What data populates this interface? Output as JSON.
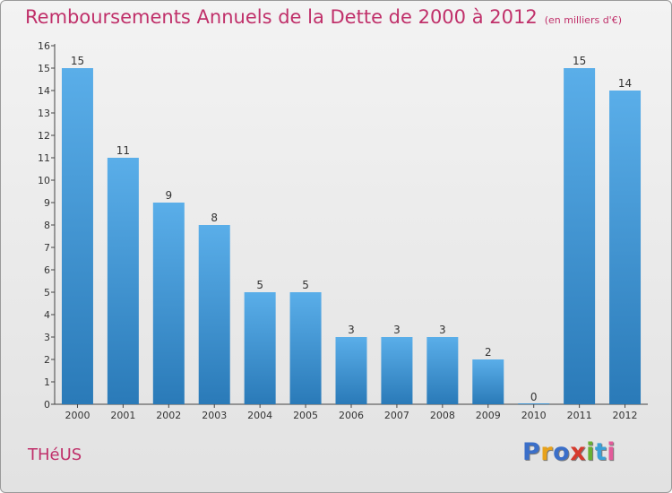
{
  "header": {
    "title": "Remboursements Annuels de la Dette de 2000 à 2012",
    "unit": "(en milliers d'€)"
  },
  "footer": {
    "commune": "THéUS",
    "logo_letters": [
      "P",
      "r",
      "o",
      "x",
      "i",
      "t",
      "i"
    ],
    "logo_colors": [
      "#3b6fc9",
      "#e8a21b",
      "#3b6fc9",
      "#d63b2e",
      "#67b133",
      "#3aa0d8",
      "#e35a9a"
    ]
  },
  "chart_data": {
    "type": "bar",
    "title": "Remboursements Annuels de la Dette de 2000 à 2012",
    "xlabel": "",
    "ylabel": "",
    "categories": [
      "2000",
      "2001",
      "2002",
      "2003",
      "2004",
      "2005",
      "2006",
      "2007",
      "2008",
      "2009",
      "2010",
      "2011",
      "2012"
    ],
    "values": [
      15,
      11,
      9,
      8,
      5,
      5,
      3,
      3,
      3,
      2,
      0,
      15,
      14
    ],
    "ylim": [
      0,
      16
    ],
    "yticks": [
      0,
      1,
      2,
      3,
      4,
      5,
      6,
      7,
      8,
      9,
      10,
      11,
      12,
      13,
      14,
      15,
      16
    ],
    "grid": false,
    "colors": {
      "bar_top": "#5aaee9",
      "bar_bottom": "#2a7ab8",
      "axis": "#444444"
    }
  }
}
